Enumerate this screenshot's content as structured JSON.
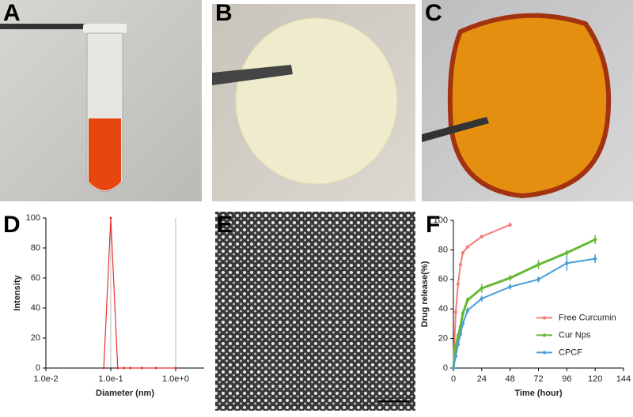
{
  "panel_labels": [
    "A",
    "B",
    "C",
    "D",
    "E",
    "F"
  ],
  "chart_data": [
    {
      "type": "line",
      "xlabel": "Diameter (nm)",
      "ylabel": "Intensity",
      "xlog": true,
      "xlim": [
        0.01,
        2.75
      ],
      "ylim": [
        0,
        100
      ],
      "xticks": [
        {
          "value": 0.01,
          "label": "1.0e-2"
        },
        {
          "value": 0.1,
          "label": "1.0e-1"
        },
        {
          "value": 1,
          "label": "1.0e+0"
        }
      ],
      "yticks": [
        0,
        20,
        40,
        60,
        80,
        100
      ],
      "grid": "x",
      "series": [
        {
          "color": "#e8322d",
          "x": [
            0.078,
            0.1,
            0.128,
            0.16,
            0.2,
            0.3,
            0.5,
            1.0
          ],
          "values": [
            0,
            100,
            0,
            0,
            0,
            0,
            0,
            0
          ]
        }
      ]
    },
    {
      "type": "line",
      "xlabel": "Time (hour)",
      "ylabel": "Drug release(%)",
      "xlog": false,
      "xlim": [
        0,
        144
      ],
      "ylim": [
        0,
        100
      ],
      "xticks": [
        0,
        24,
        48,
        72,
        96,
        120,
        144
      ],
      "yticks": [
        0,
        20,
        40,
        60,
        80,
        100
      ],
      "grid": false,
      "legend": "right",
      "series": [
        {
          "name": "Free Curcumin",
          "color": "#f27d7a",
          "x": [
            0,
            2,
            4,
            6,
            8,
            12,
            24,
            48
          ],
          "values": [
            0,
            38,
            57,
            70,
            78,
            82,
            89,
            97
          ],
          "errors": [
            0,
            1,
            1,
            1,
            1,
            1,
            1,
            1.5
          ]
        },
        {
          "name": "Cur Nps",
          "color": "#66b933",
          "x": [
            0,
            2,
            4,
            6,
            8,
            12,
            24,
            48,
            72,
            96,
            120
          ],
          "values": [
            0,
            15,
            22,
            28,
            37,
            46,
            54,
            61,
            70,
            78,
            87
          ],
          "errors": [
            0,
            1,
            1,
            1,
            2,
            2,
            3,
            2,
            3,
            2,
            3
          ]
        },
        {
          "name": "CPCF",
          "color": "#4a9fd8",
          "x": [
            0,
            2,
            4,
            6,
            8,
            12,
            24,
            48,
            72,
            96,
            120
          ],
          "values": [
            0,
            8,
            16,
            23,
            30,
            39,
            47,
            55,
            60,
            71,
            74
          ],
          "errors": [
            0,
            1,
            1,
            1,
            2,
            2,
            2,
            2,
            2,
            5,
            3
          ]
        }
      ]
    }
  ]
}
